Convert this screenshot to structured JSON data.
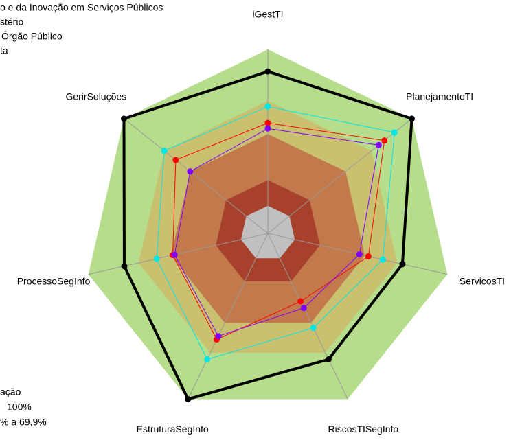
{
  "chart_data": {
    "type": "radar",
    "categories": [
      "iGestTI",
      "PlanejamentoTI",
      "ServicosTI",
      "RiscosTISegInfo",
      "EstruturaSegInfo",
      "ProcessoSegInfo",
      "GerirSoluções"
    ],
    "rlim": [
      0,
      100
    ],
    "bands": {
      "values": [
        100,
        72,
        54,
        29,
        15
      ],
      "colors": [
        "#b5dd8b",
        "#c9c070",
        "#c27a4c",
        "#a8412c",
        "#c0c0c0"
      ]
    },
    "series": [
      {
        "name": "o e da Inovação em Serviços Públicos",
        "color": "#00e5e5",
        "values": [
          69,
          88,
          64,
          57,
          76,
          62,
          72
        ]
      },
      {
        "name": "stério",
        "color": "#ff0000",
        "values": [
          60,
          81,
          56,
          41,
          64,
          53,
          64
        ]
      },
      {
        "name": "Órgão Público",
        "color": "#7f00ff",
        "values": [
          57,
          77,
          51,
          45,
          62,
          52,
          54
        ]
      },
      {
        "name": "ta",
        "color": "#000000",
        "values": [
          88,
          100,
          75,
          76,
          100,
          80,
          100
        ]
      }
    ],
    "band_legend": {
      "title": "ação",
      "labels": [
        "100%",
        "% a 69,9%"
      ]
    }
  }
}
